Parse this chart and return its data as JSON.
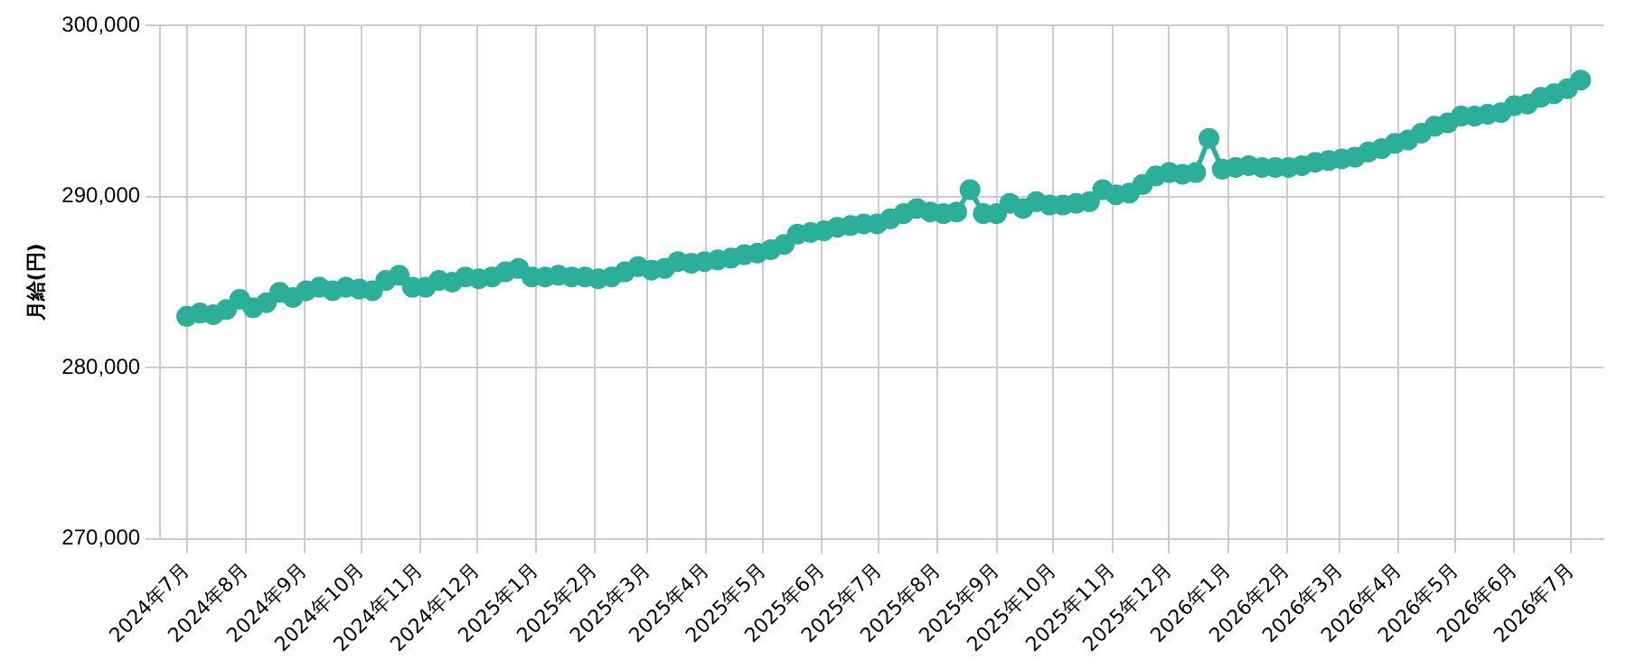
{
  "chart_data": {
    "type": "line",
    "ylabel": "月給(円)",
    "grid": true,
    "legend": false,
    "marker": "circle",
    "line_style": "solid",
    "x": [
      "2024-07-01",
      "2024-07-08",
      "2024-07-15",
      "2024-07-22",
      "2024-07-29",
      "2024-08-05",
      "2024-08-12",
      "2024-08-19",
      "2024-08-26",
      "2024-09-02",
      "2024-09-09",
      "2024-09-16",
      "2024-09-23",
      "2024-09-30",
      "2024-10-07",
      "2024-10-14",
      "2024-10-21",
      "2024-10-28",
      "2024-11-04",
      "2024-11-11",
      "2024-11-18",
      "2024-11-25",
      "2024-12-02",
      "2024-12-09",
      "2024-12-16",
      "2024-12-23",
      "2024-12-30",
      "2025-01-06",
      "2025-01-13",
      "2025-01-20",
      "2025-01-27",
      "2025-02-03",
      "2025-02-10",
      "2025-02-17",
      "2025-02-24",
      "2025-03-03",
      "2025-03-10",
      "2025-03-17",
      "2025-03-24",
      "2025-03-31",
      "2025-04-07",
      "2025-04-14",
      "2025-04-21",
      "2025-04-28",
      "2025-05-05",
      "2025-05-12",
      "2025-05-19",
      "2025-05-26",
      "2025-06-02",
      "2025-06-09",
      "2025-06-16",
      "2025-06-23",
      "2025-06-30",
      "2025-07-07",
      "2025-07-14",
      "2025-07-21",
      "2025-07-28",
      "2025-08-04",
      "2025-08-11",
      "2025-08-18",
      "2025-08-25",
      "2025-09-01",
      "2025-09-08",
      "2025-09-15",
      "2025-09-22",
      "2025-09-29",
      "2025-10-06",
      "2025-10-13",
      "2025-10-20",
      "2025-10-27",
      "2025-11-03",
      "2025-11-10",
      "2025-11-17",
      "2025-11-24",
      "2025-12-01",
      "2025-12-08",
      "2025-12-15",
      "2025-12-22",
      "2025-12-29",
      "2026-01-05",
      "2026-01-12",
      "2026-01-19",
      "2026-01-26",
      "2026-02-02",
      "2026-02-09",
      "2026-02-16",
      "2026-02-23",
      "2026-03-02",
      "2026-03-09",
      "2026-03-16",
      "2026-03-23",
      "2026-03-30",
      "2026-04-06",
      "2026-04-13",
      "2026-04-20",
      "2026-04-27",
      "2026-05-04",
      "2026-05-11",
      "2026-05-18",
      "2026-05-25",
      "2026-06-01",
      "2026-06-08",
      "2026-06-15",
      "2026-06-22",
      "2026-06-29",
      "2026-07-06"
    ],
    "series": [
      {
        "color": "#2bae9a",
        "values": [
          283000,
          283200,
          283100,
          283400,
          284000,
          283500,
          283800,
          284400,
          284100,
          284500,
          284700,
          284500,
          284700,
          284600,
          284500,
          285100,
          285400,
          284700,
          284700,
          285100,
          285000,
          285300,
          285200,
          285300,
          285600,
          285800,
          285300,
          285300,
          285400,
          285300,
          285300,
          285200,
          285300,
          285600,
          285900,
          285700,
          285800,
          286200,
          286100,
          286200,
          286300,
          286400,
          286600,
          286700,
          286900,
          287200,
          287800,
          287900,
          288000,
          288200,
          288300,
          288400,
          288400,
          288700,
          289000,
          289300,
          289100,
          289000,
          289100,
          290400,
          289000,
          289000,
          289600,
          289300,
          289700,
          289500,
          289500,
          289600,
          289700,
          290400,
          290100,
          290200,
          290700,
          291200,
          291400,
          291300,
          291400,
          293400,
          291600,
          291700,
          291800,
          291700,
          291700,
          291700,
          291800,
          292000,
          292100,
          292200,
          292300,
          292600,
          292800,
          293100,
          293300,
          293700,
          294100,
          294300,
          294700,
          294700,
          294800,
          294900,
          295300,
          295400,
          295800,
          296000,
          296300,
          296800
        ]
      }
    ],
    "xlim": [
      "2024-06-17",
      "2026-07-18"
    ],
    "xticks": [
      {
        "value": "2024-07-01",
        "label": "2024年7月"
      },
      {
        "value": "2024-08-01",
        "label": "2024年8月"
      },
      {
        "value": "2024-09-01",
        "label": "2024年9月"
      },
      {
        "value": "2024-10-01",
        "label": "2024年10月"
      },
      {
        "value": "2024-11-01",
        "label": "2024年11月"
      },
      {
        "value": "2024-12-01",
        "label": "2024年12月"
      },
      {
        "value": "2025-01-01",
        "label": "2025年1月"
      },
      {
        "value": "2025-02-01",
        "label": "2025年2月"
      },
      {
        "value": "2025-03-01",
        "label": "2025年3月"
      },
      {
        "value": "2025-04-01",
        "label": "2025年4月"
      },
      {
        "value": "2025-05-01",
        "label": "2025年5月"
      },
      {
        "value": "2025-06-01",
        "label": "2025年6月"
      },
      {
        "value": "2025-07-01",
        "label": "2025年7月"
      },
      {
        "value": "2025-08-01",
        "label": "2025年8月"
      },
      {
        "value": "2025-09-01",
        "label": "2025年9月"
      },
      {
        "value": "2025-10-01",
        "label": "2025年10月"
      },
      {
        "value": "2025-11-01",
        "label": "2025年11月"
      },
      {
        "value": "2025-12-01",
        "label": "2025年12月"
      },
      {
        "value": "2026-01-01",
        "label": "2026年1月"
      },
      {
        "value": "2026-02-01",
        "label": "2026年2月"
      },
      {
        "value": "2026-03-01",
        "label": "2026年3月"
      },
      {
        "value": "2026-04-01",
        "label": "2026年4月"
      },
      {
        "value": "2026-05-01",
        "label": "2026年5月"
      },
      {
        "value": "2026-06-01",
        "label": "2026年6月"
      },
      {
        "value": "2026-07-01",
        "label": "2026年7月"
      }
    ],
    "ylim": [
      270000,
      300000
    ],
    "yticks": [
      {
        "value": 270000,
        "label": "270,000"
      },
      {
        "value": 280000,
        "label": "280,000"
      },
      {
        "value": 290000,
        "label": "290,000"
      },
      {
        "value": 300000,
        "label": "300,000"
      }
    ]
  }
}
